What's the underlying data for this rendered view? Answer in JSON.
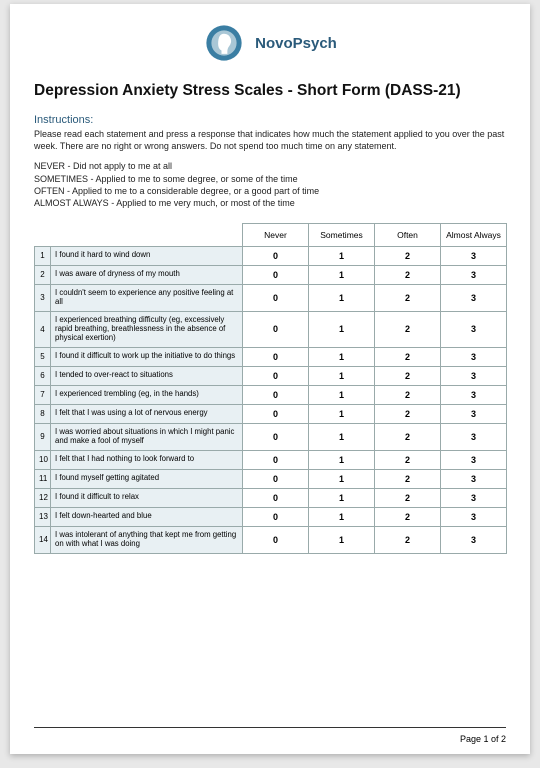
{
  "brand": "NovoPsych",
  "logo": {
    "outer_color": "#3a7ea3",
    "inner_color": "#a9c7d6",
    "profile_color": "#ffffff"
  },
  "title": "Depression Anxiety Stress Scales - Short Form (DASS-21)",
  "instructions_heading": "Instructions:",
  "instructions_body": "Please read each statement and press a response that indicates how much the statement applied to you over the past week.  There are no right or wrong answers.  Do not spend too much time on any statement.",
  "scale_key": [
    "NEVER - Did not apply to me at all",
    "SOMETIMES - Applied to me to some degree, or some of the time",
    "OFTEN - Applied to me to a considerable degree, or a good part of time",
    "ALMOST ALWAYS - Applied to me very much, or most of the time"
  ],
  "columns": [
    "Never",
    "Sometimes",
    "Often",
    "Almost Always"
  ],
  "option_values": [
    "0",
    "1",
    "2",
    "3"
  ],
  "statements": [
    "I found it hard to wind down",
    "I was aware of dryness of my mouth",
    "I couldn't seem to experience any positive feeling at all",
    "I experienced breathing difficulty (eg, excessively rapid breathing, breathlessness in the absence of physical exertion)",
    "I found it difficult to work up the initiative to do things",
    "I tended to over-react to situations",
    "I experienced trembling (eg, in the hands)",
    "I felt that I was using a lot of nervous energy",
    "I was worried about situations in which I might panic and make a fool of myself",
    "I felt that I had nothing to look forward to",
    "I found myself getting agitated",
    "I found it difficult to relax",
    "I felt down-hearted and blue",
    "I was intolerant of anything that kept me from getting on with what I was doing"
  ],
  "colors": {
    "row_bg": "#e8f0f3",
    "border": "#99aaaa",
    "brand_text": "#2a5a7a"
  },
  "footer": "Page 1 of 2"
}
